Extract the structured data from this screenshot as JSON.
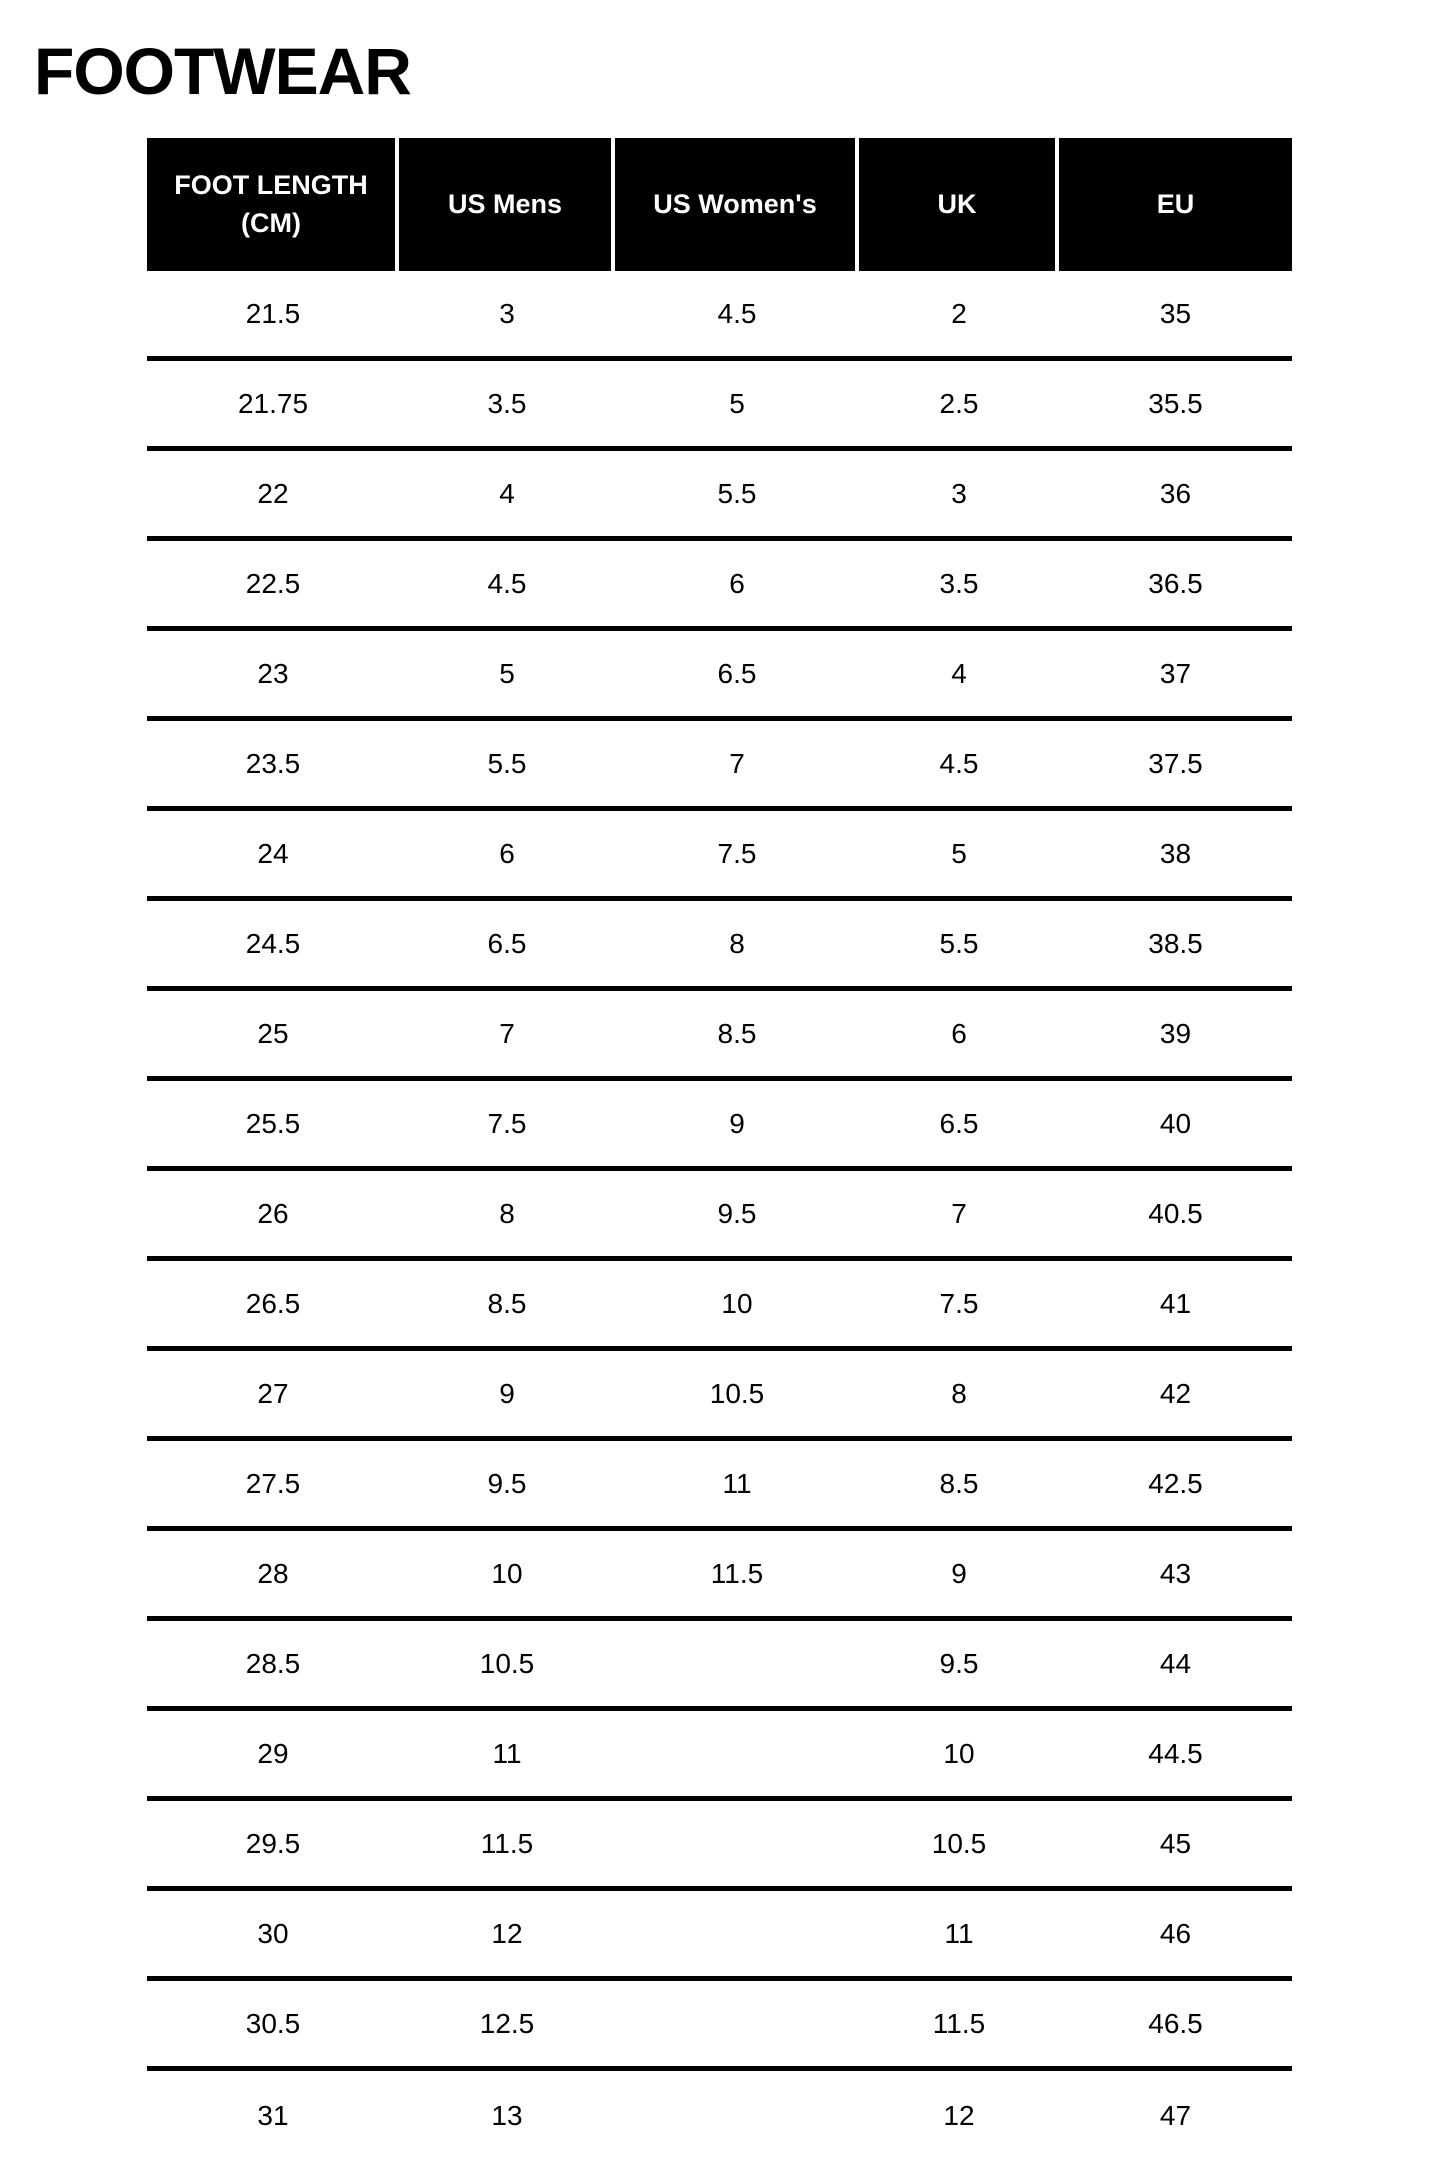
{
  "page": {
    "title": "FOOTWEAR"
  },
  "colors": {
    "header_bg": "#000000",
    "header_text": "#ffffff",
    "body_text": "#000000",
    "row_divider": "#000000",
    "page_bg": "#ffffff"
  },
  "table": {
    "columns": [
      "FOOT LENGTH\n(CM)",
      "US Mens",
      "US Women's",
      "UK",
      "EU"
    ],
    "rows": [
      [
        "21.5",
        "3",
        "4.5",
        "2",
        "35"
      ],
      [
        "21.75",
        "3.5",
        "5",
        "2.5",
        "35.5"
      ],
      [
        "22",
        "4",
        "5.5",
        "3",
        "36"
      ],
      [
        "22.5",
        "4.5",
        "6",
        "3.5",
        "36.5"
      ],
      [
        "23",
        "5",
        "6.5",
        "4",
        "37"
      ],
      [
        "23.5",
        "5.5",
        "7",
        "4.5",
        "37.5"
      ],
      [
        "24",
        "6",
        "7.5",
        "5",
        "38"
      ],
      [
        "24.5",
        "6.5",
        "8",
        "5.5",
        "38.5"
      ],
      [
        "25",
        "7",
        "8.5",
        "6",
        "39"
      ],
      [
        "25.5",
        "7.5",
        "9",
        "6.5",
        "40"
      ],
      [
        "26",
        "8",
        "9.5",
        "7",
        "40.5"
      ],
      [
        "26.5",
        "8.5",
        "10",
        "7.5",
        "41"
      ],
      [
        "27",
        "9",
        "10.5",
        "8",
        "42"
      ],
      [
        "27.5",
        "9.5",
        "11",
        "8.5",
        "42.5"
      ],
      [
        "28",
        "10",
        "11.5",
        "9",
        "43"
      ],
      [
        "28.5",
        "10.5",
        "",
        "9.5",
        "44"
      ],
      [
        "29",
        "11",
        "",
        "10",
        "44.5"
      ],
      [
        "29.5",
        "11.5",
        "",
        "10.5",
        "45"
      ],
      [
        "30",
        "12",
        "",
        "11",
        "46"
      ],
      [
        "30.5",
        "12.5",
        "",
        "11.5",
        "46.5"
      ],
      [
        "31",
        "13",
        "",
        "12",
        "47"
      ]
    ]
  }
}
